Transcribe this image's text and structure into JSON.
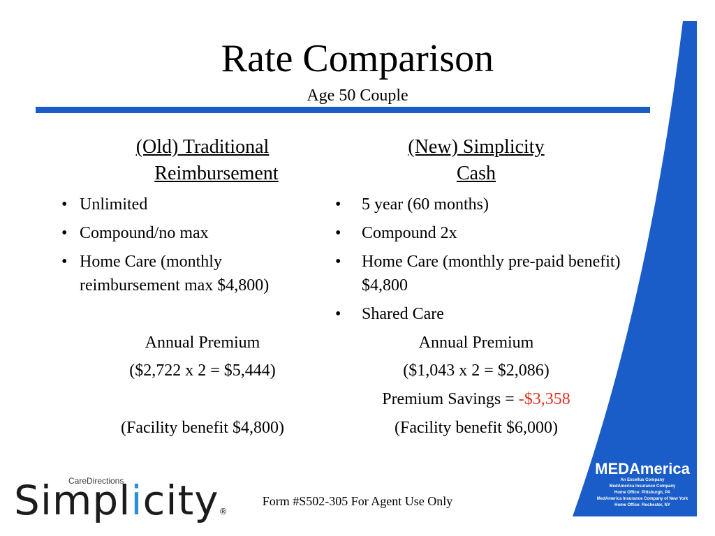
{
  "header": {
    "title": "Rate Comparison",
    "subtitle": "Age 50 Couple"
  },
  "left": {
    "heading_line1": "(Old) Traditional",
    "heading_line2": "Reimbursement",
    "bullets": [
      "Unlimited",
      "Compound/no max",
      "Home Care (monthly reimbursement max $4,800)"
    ],
    "premium_label": "Annual Premium",
    "premium_value": "($2,722 x 2 = $5,444)",
    "facility": "(Facility benefit $4,800)"
  },
  "right": {
    "heading_line1": "(New) Simplicity",
    "heading_line2": "Cash",
    "bullets": [
      "5 year (60 months)",
      "Compound 2x",
      "Home Care (monthly pre-paid benefit) $4,800",
      "Shared Care"
    ],
    "premium_label": "Annual Premium",
    "premium_value": "($1,043 x 2 = $2,086)",
    "savings_label": "Premium Savings = ",
    "savings_value": "-$3,358",
    "facility": "(Facility benefit $6,000)"
  },
  "footer": {
    "form_text": "Form #S502-305 For Agent Use Only"
  },
  "logo": {
    "small_text": "CareDirections",
    "part1": "Simpl",
    "part2": "i",
    "part3": "city",
    "trademark": "®"
  },
  "medamerica": {
    "logo_text": "MEDAmerica",
    "line1": "An Excellus Company",
    "line2": "MedAmerica Insurance Company",
    "line3": "Home Office: Pittsburgh, PA",
    "line4": "MedAmerica Insurance Company of New York",
    "line5": "Home Office: Rochester, NY"
  },
  "colors": {
    "accent_blue": "#1a5cc8",
    "savings_red": "#e0301e",
    "logo_blue": "#2a8fd6"
  }
}
